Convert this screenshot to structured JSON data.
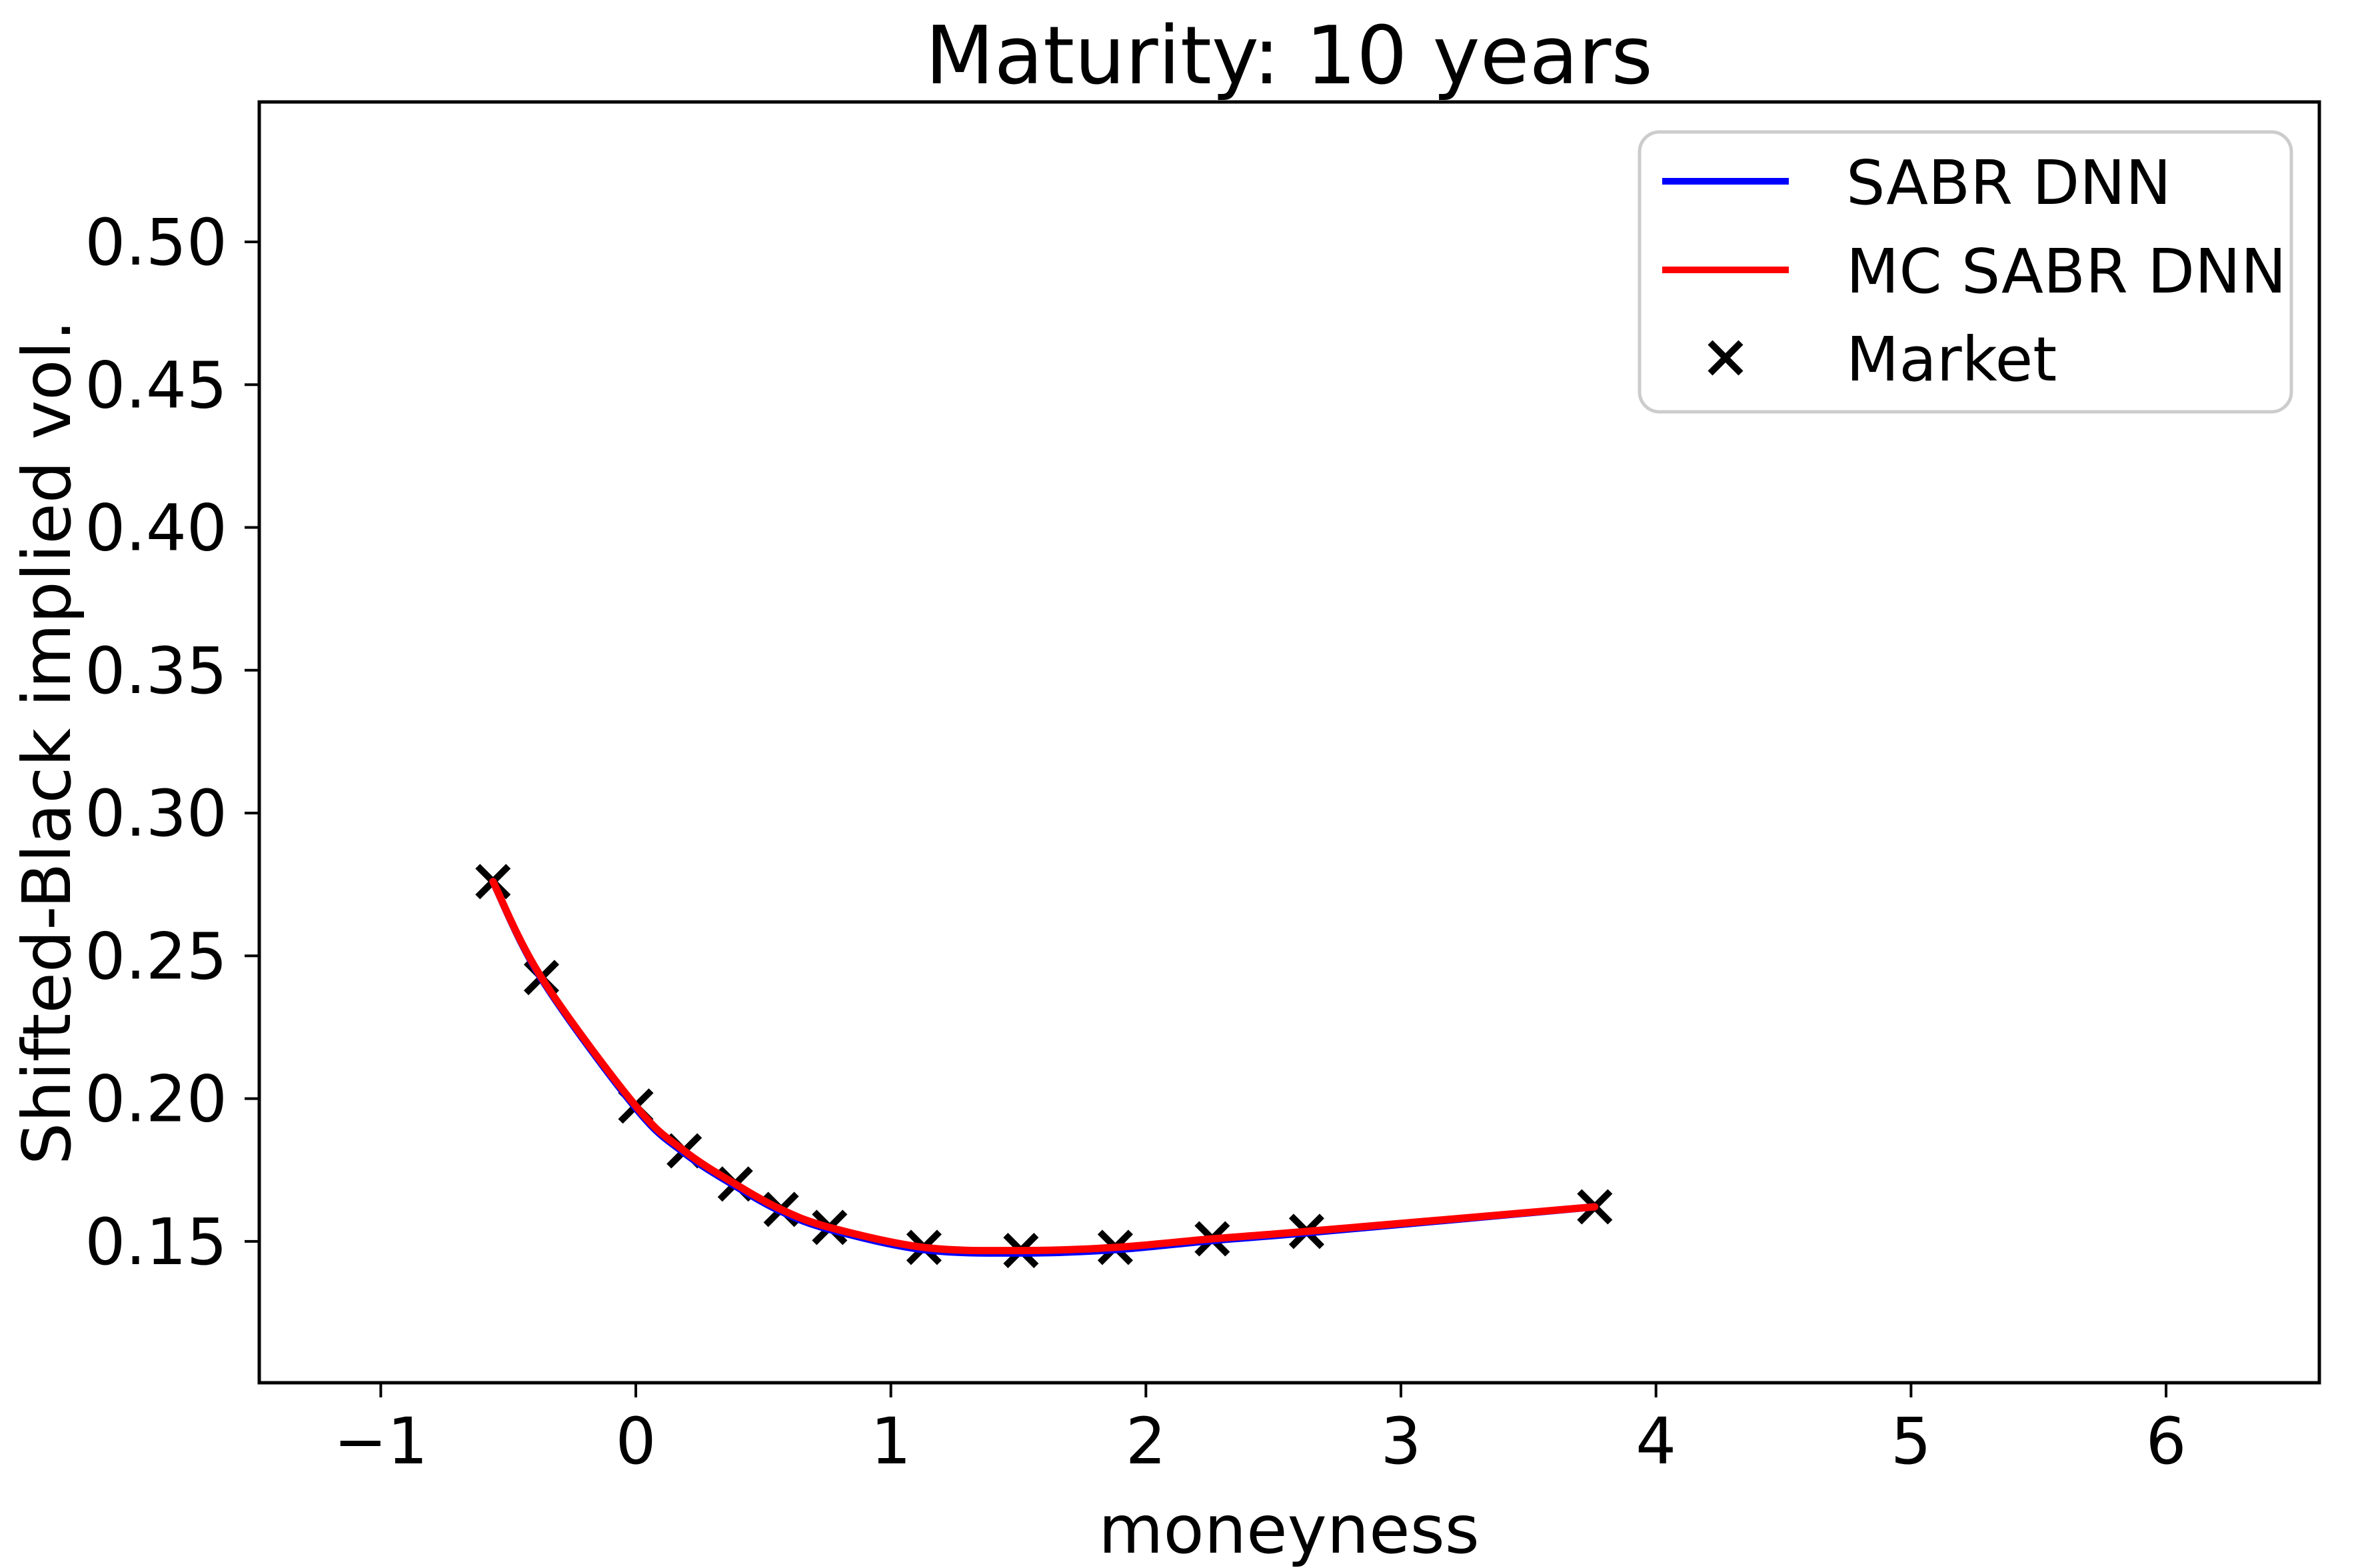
{
  "chart_data": {
    "type": "line",
    "title": "Maturity: 10 years",
    "xlabel": "moneyness",
    "ylabel": "Shifted-Black implied vol.",
    "xlim": [
      -1.4765,
      6.601
    ],
    "ylim": [
      0.1005,
      0.549
    ],
    "xticks": [
      -1,
      0,
      1,
      2,
      3,
      4,
      5,
      6
    ],
    "xticklabels": [
      "−1",
      "0",
      "1",
      "2",
      "3",
      "4",
      "5",
      "6"
    ],
    "yticks": [
      0.15,
      0.2,
      0.25,
      0.3,
      0.35,
      0.4,
      0.45,
      0.5
    ],
    "yticklabels": [
      "0.15",
      "0.20",
      "0.25",
      "0.30",
      "0.35",
      "0.40",
      "0.45",
      "0.50"
    ],
    "grid": false,
    "legend": {
      "location": "upper right"
    },
    "series": [
      {
        "name": "SABR DNN",
        "type": "line",
        "color": "#0000ff",
        "x": [
          -0.56,
          -0.37,
          0.0,
          0.19,
          0.39,
          0.57,
          0.76,
          1.13,
          1.51,
          1.88,
          2.26,
          2.63,
          3.76
        ],
        "y": [
          0.276,
          0.242,
          0.1967,
          0.181,
          0.1694,
          0.1605,
          0.1542,
          0.1471,
          0.1459,
          0.1471,
          0.1503,
          0.153,
          0.1621
        ]
      },
      {
        "name": "MC SABR DNN",
        "type": "line",
        "color": "#ff0000",
        "x": [
          -0.56,
          -0.37,
          0.0,
          0.19,
          0.39,
          0.57,
          0.76,
          1.13,
          1.51,
          1.88,
          2.26,
          2.63,
          3.76
        ],
        "y": [
          0.276,
          0.2424,
          0.1974,
          0.1817,
          0.1701,
          0.1612,
          0.1549,
          0.1479,
          0.1468,
          0.1479,
          0.1509,
          0.1535,
          0.1621
        ]
      },
      {
        "name": "Market",
        "type": "scatter",
        "marker": "x",
        "color": "#000000",
        "x": [
          -0.56,
          -0.37,
          0.0,
          0.19,
          0.39,
          0.57,
          0.76,
          1.13,
          1.51,
          1.88,
          2.26,
          2.63,
          3.76
        ],
        "y": [
          0.276,
          0.2424,
          0.1974,
          0.1817,
          0.1701,
          0.1612,
          0.1549,
          0.1479,
          0.1468,
          0.1479,
          0.1509,
          0.1535,
          0.1621
        ]
      }
    ]
  }
}
